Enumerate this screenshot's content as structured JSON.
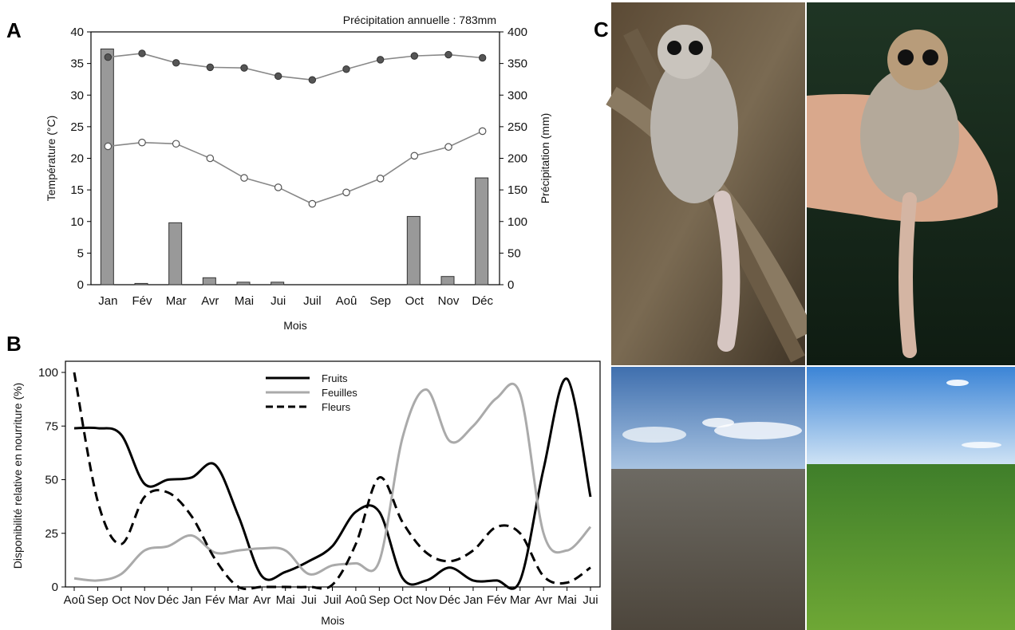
{
  "panels": {
    "a": "A",
    "b": "B",
    "c": "C"
  },
  "colors": {
    "temp_max": "#555555",
    "temp_min": "#ffffff",
    "temp_line": "#888888",
    "precip_bar": "#999999",
    "fruits": "#000000",
    "feuilles": "#aaaaaa",
    "fleurs": "#000000"
  },
  "photos": [
    "lemur-on-branch-photo",
    "lemur-in-hand-photo",
    "dry-forest-landscape-photo",
    "green-forest-landscape-photo"
  ],
  "chart_data": [
    {
      "type": "bar+line",
      "panel": "A",
      "annotation": "Précipitation annuelle : 783mm",
      "xlabel": "Mois",
      "ylabel_left": "Température (°C)",
      "ylabel_right": "Précipitation (mm)",
      "ylim_left": [
        0,
        40
      ],
      "ylim_right": [
        0,
        400
      ],
      "yticks_left": [
        "0",
        "5",
        "10",
        "15",
        "20",
        "25",
        "30",
        "35",
        "40"
      ],
      "yticks_right": [
        "0",
        "50",
        "100",
        "150",
        "200",
        "250",
        "300",
        "350",
        "400"
      ],
      "categories": [
        "Jan",
        "Fév",
        "Mar",
        "Avr",
        "Mai",
        "Jui",
        "Juil",
        "Aoû",
        "Sep",
        "Oct",
        "Nov",
        "Déc"
      ],
      "precipitation": [
        373,
        2,
        98,
        11,
        4,
        4,
        0,
        0,
        0,
        108,
        13,
        169
      ],
      "temp_max": [
        36.0,
        36.6,
        35.1,
        34.4,
        34.3,
        33.0,
        32.4,
        34.1,
        35.6,
        36.2,
        36.4,
        35.9
      ],
      "temp_min": [
        21.9,
        22.5,
        22.3,
        20.0,
        16.9,
        15.4,
        12.8,
        14.6,
        16.8,
        20.4,
        21.8,
        24.3
      ],
      "grid": false
    },
    {
      "type": "line",
      "panel": "B",
      "xlabel": "Mois",
      "ylabel": "Disponibilité relative en nourriture (%)",
      "ylim": [
        0,
        100
      ],
      "yticks": [
        "0",
        "25",
        "50",
        "75",
        "100"
      ],
      "categories": [
        "Aoû",
        "Sep",
        "Oct",
        "Nov",
        "Déc",
        "Jan",
        "Fév",
        "Mar",
        "Avr",
        "Mai",
        "Jui",
        "Juil",
        "Aoû",
        "Sep",
        "Oct",
        "Nov",
        "Déc",
        "Jan",
        "Fév",
        "Mar",
        "Avr",
        "Mai",
        "Jui"
      ],
      "legend_position": "top-center",
      "series": [
        {
          "name": "Fruits",
          "style": "solid",
          "values": [
            74,
            74,
            71,
            48,
            50,
            51,
            57,
            33,
            5,
            7,
            12,
            19,
            35,
            35,
            4,
            3,
            9,
            3,
            3,
            3,
            55,
            97,
            42
          ]
        },
        {
          "name": "Feuilles",
          "style": "solid",
          "values": [
            4,
            3,
            6,
            17,
            19,
            24,
            16,
            17,
            18,
            17,
            6,
            10,
            11,
            12,
            70,
            92,
            68,
            75,
            88,
            90,
            25,
            17,
            28
          ]
        },
        {
          "name": "Fleurs",
          "style": "dashed",
          "values": [
            100,
            40,
            20,
            42,
            44,
            33,
            13,
            0,
            0,
            0,
            0,
            1,
            20,
            51,
            30,
            16,
            12,
            17,
            28,
            25,
            5,
            2,
            9
          ]
        }
      ],
      "grid": false
    }
  ]
}
